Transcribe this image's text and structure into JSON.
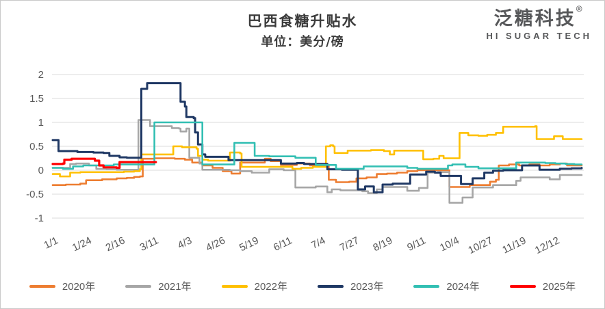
{
  "header": {
    "title": "巴西食糖升贴水",
    "subtitle": "单位：美分/磅"
  },
  "logo": {
    "name": "泛糖科技",
    "registered": "®",
    "tagline": "HI SUGAR TECH"
  },
  "colors": {
    "background": "#ffffff",
    "border": "#c9c9c9",
    "grid": "#dbdbdb",
    "axis_text": "#595959",
    "title_text": "#3b3b3b",
    "logo_text": "#57585a"
  },
  "chart_data": {
    "type": "line",
    "title": "巴西食糖升贴水",
    "subtitle": "单位：美分/磅",
    "ylabel": "",
    "xlabel": "",
    "ylim": [
      -1,
      2
    ],
    "grid": "horizontal",
    "legend_position": "bottom",
    "step_interpolation": true,
    "x_unit": "day-of-year",
    "ytick_values": [
      2,
      1.5,
      1,
      0.5,
      0,
      -0.5,
      -1
    ],
    "ytick_labels": [
      "2",
      "1.5",
      "1",
      "0.5",
      "0",
      "-0.5",
      "-1"
    ],
    "xticks": [
      {
        "label": "1/1",
        "day": 1
      },
      {
        "label": "1/24",
        "day": 24
      },
      {
        "label": "2/16",
        "day": 47
      },
      {
        "label": "3/11",
        "day": 70
      },
      {
        "label": "4/3",
        "day": 93
      },
      {
        "label": "4/26",
        "day": 116
      },
      {
        "label": "5/19",
        "day": 139
      },
      {
        "label": "6/11",
        "day": 162
      },
      {
        "label": "7/4",
        "day": 185
      },
      {
        "label": "7/27",
        "day": 208
      },
      {
        "label": "8/19",
        "day": 231
      },
      {
        "label": "9/11",
        "day": 254
      },
      {
        "label": "10/4",
        "day": 277
      },
      {
        "label": "10/27",
        "day": 300
      },
      {
        "label": "11/19",
        "day": 323
      },
      {
        "label": "12/12",
        "day": 346
      }
    ],
    "series": [
      {
        "name": "2020年",
        "color": "#ED7D31",
        "width": 2.6,
        "points": [
          [
            1,
            -0.31
          ],
          [
            10,
            -0.3
          ],
          [
            20,
            -0.28
          ],
          [
            24,
            -0.21
          ],
          [
            35,
            -0.19
          ],
          [
            45,
            -0.17
          ],
          [
            52,
            -0.16
          ],
          [
            57,
            -0.14
          ],
          [
            61,
            -0.13
          ],
          [
            63,
            0.24
          ],
          [
            71,
            0.25
          ],
          [
            85,
            0.24
          ],
          [
            92,
            0.22
          ],
          [
            97,
            0.16
          ],
          [
            104,
            0.1
          ],
          [
            111,
            0.05
          ],
          [
            118,
            -0.02
          ],
          [
            124,
            -0.07
          ],
          [
            130,
            0.16
          ],
          [
            142,
            0.16
          ],
          [
            147,
            0.24
          ],
          [
            151,
            0.19
          ],
          [
            158,
            0.11
          ],
          [
            169,
            0.14
          ],
          [
            178,
            0.1
          ],
          [
            189,
            0.1
          ],
          [
            191,
            -0.2
          ],
          [
            196,
            -0.25
          ],
          [
            205,
            -0.24
          ],
          [
            210,
            -0.17
          ],
          [
            217,
            -0.15
          ],
          [
            224,
            -0.08
          ],
          [
            231,
            -0.07
          ],
          [
            238,
            -0.05
          ],
          [
            245,
            -0.02
          ],
          [
            252,
            0.0
          ],
          [
            266,
            0.0
          ],
          [
            274,
            -0.35
          ],
          [
            283,
            -0.35
          ],
          [
            288,
            -0.31
          ],
          [
            297,
            -0.31
          ],
          [
            302,
            -0.24
          ],
          [
            306,
            -0.2
          ],
          [
            308,
            0.1
          ],
          [
            315,
            0.12
          ],
          [
            322,
            0.1
          ],
          [
            329,
            0.12
          ],
          [
            336,
            0.1
          ],
          [
            343,
            0.12
          ],
          [
            350,
            0.14
          ],
          [
            355,
            0.1
          ],
          [
            365,
            0.1
          ]
        ]
      },
      {
        "name": "2021年",
        "color": "#A6A6A6",
        "width": 2.6,
        "points": [
          [
            1,
            0.05
          ],
          [
            12,
            0.05
          ],
          [
            13,
            0.13
          ],
          [
            17,
            0.14
          ],
          [
            26,
            0.1
          ],
          [
            31,
            0.03
          ],
          [
            38,
            0.02
          ],
          [
            45,
            0.01
          ],
          [
            59,
            0.01
          ],
          [
            60,
            1.05
          ],
          [
            67,
            1.05
          ],
          [
            68,
            0.92
          ],
          [
            82,
            0.92
          ],
          [
            83,
            0.88
          ],
          [
            88,
            0.87
          ],
          [
            89,
            0.81
          ],
          [
            92,
            0.81
          ],
          [
            93,
            0.87
          ],
          [
            95,
            0.26
          ],
          [
            102,
            0.14
          ],
          [
            104,
            0.01
          ],
          [
            110,
            0.01
          ],
          [
            123,
            0.0
          ],
          [
            130,
            -0.02
          ],
          [
            138,
            -0.05
          ],
          [
            150,
            0.02
          ],
          [
            160,
            0.0
          ],
          [
            167,
            0.0
          ],
          [
            168,
            -0.36
          ],
          [
            180,
            -0.36
          ],
          [
            182,
            -0.34
          ],
          [
            189,
            -0.34
          ],
          [
            190,
            -0.46
          ],
          [
            193,
            -0.4
          ],
          [
            199,
            -0.42
          ],
          [
            211,
            -0.42
          ],
          [
            214,
            -0.44
          ],
          [
            218,
            -0.48
          ],
          [
            224,
            -0.4
          ],
          [
            228,
            -0.35
          ],
          [
            244,
            -0.35
          ],
          [
            245,
            -0.43
          ],
          [
            251,
            -0.43
          ],
          [
            253,
            -0.37
          ],
          [
            258,
            -0.37
          ],
          [
            259,
            -0.05
          ],
          [
            266,
            -0.04
          ],
          [
            273,
            -0.04
          ],
          [
            274,
            -0.68
          ],
          [
            281,
            -0.68
          ],
          [
            283,
            -0.57
          ],
          [
            289,
            -0.57
          ],
          [
            290,
            -0.36
          ],
          [
            301,
            -0.36
          ],
          [
            304,
            -0.31
          ],
          [
            317,
            -0.31
          ],
          [
            320,
            -0.22
          ],
          [
            323,
            -0.15
          ],
          [
            341,
            -0.15
          ],
          [
            343,
            -0.19
          ],
          [
            348,
            -0.19
          ],
          [
            350,
            -0.1
          ],
          [
            365,
            -0.1
          ]
        ]
      },
      {
        "name": "2022年",
        "color": "#FFC000",
        "width": 2.6,
        "points": [
          [
            1,
            -0.08
          ],
          [
            6,
            -0.13
          ],
          [
            13,
            -0.05
          ],
          [
            20,
            -0.04
          ],
          [
            50,
            -0.03
          ],
          [
            57,
            -0.02
          ],
          [
            61,
            0.02
          ],
          [
            62,
            0.33
          ],
          [
            83,
            0.33
          ],
          [
            84,
            0.5
          ],
          [
            90,
            0.48
          ],
          [
            100,
            0.45
          ],
          [
            101,
            0.3
          ],
          [
            104,
            0.22
          ],
          [
            108,
            0.2
          ],
          [
            118,
            0.2
          ],
          [
            123,
            0.37
          ],
          [
            130,
            0.35
          ],
          [
            131,
            0.07
          ],
          [
            160,
            0.07
          ],
          [
            166,
            0.03
          ],
          [
            172,
            0.05
          ],
          [
            180,
            0.07
          ],
          [
            188,
            0.07
          ],
          [
            189,
            0.5
          ],
          [
            192,
            0.52
          ],
          [
            194,
            0.5
          ],
          [
            195,
            0.36
          ],
          [
            202,
            0.36
          ],
          [
            204,
            0.41
          ],
          [
            216,
            0.41
          ],
          [
            220,
            0.42
          ],
          [
            229,
            0.4
          ],
          [
            233,
            0.33
          ],
          [
            236,
            0.41
          ],
          [
            254,
            0.41
          ],
          [
            256,
            0.23
          ],
          [
            263,
            0.24
          ],
          [
            267,
            0.3
          ],
          [
            270,
            0.25
          ],
          [
            279,
            0.25
          ],
          [
            281,
            0.78
          ],
          [
            287,
            0.73
          ],
          [
            294,
            0.72
          ],
          [
            300,
            0.74
          ],
          [
            306,
            0.78
          ],
          [
            311,
            0.91
          ],
          [
            333,
            0.92
          ],
          [
            334,
            0.65
          ],
          [
            345,
            0.65
          ],
          [
            346,
            0.71
          ],
          [
            351,
            0.71
          ],
          [
            352,
            0.65
          ],
          [
            365,
            0.65
          ]
        ]
      },
      {
        "name": "2023年",
        "color": "#1F3864",
        "width": 3,
        "points": [
          [
            1,
            0.63
          ],
          [
            5,
            0.4
          ],
          [
            15,
            0.4
          ],
          [
            18,
            0.38
          ],
          [
            29,
            0.37
          ],
          [
            36,
            0.36
          ],
          [
            40,
            0.3
          ],
          [
            47,
            0.27
          ],
          [
            52,
            0.26
          ],
          [
            61,
            0.26
          ],
          [
            62,
            1.7
          ],
          [
            66,
            1.82
          ],
          [
            88,
            1.82
          ],
          [
            89,
            1.43
          ],
          [
            92,
            1.33
          ],
          [
            93,
            1.11
          ],
          [
            98,
            1.09
          ],
          [
            99,
            0.79
          ],
          [
            101,
            0.54
          ],
          [
            104,
            0.33
          ],
          [
            106,
            0.28
          ],
          [
            122,
            0.21
          ],
          [
            157,
            0.21
          ],
          [
            158,
            0.14
          ],
          [
            169,
            0.15
          ],
          [
            174,
            0.13
          ],
          [
            182,
            0.13
          ],
          [
            190,
            0.02
          ],
          [
            200,
            0.01
          ],
          [
            211,
            -0.4
          ],
          [
            216,
            -0.34
          ],
          [
            222,
            -0.46
          ],
          [
            228,
            -0.3
          ],
          [
            235,
            -0.28
          ],
          [
            247,
            -0.09
          ],
          [
            258,
            -0.03
          ],
          [
            264,
            -0.05
          ],
          [
            268,
            -0.12
          ],
          [
            281,
            -0.12
          ],
          [
            282,
            -0.29
          ],
          [
            289,
            -0.29
          ],
          [
            290,
            -0.17
          ],
          [
            297,
            -0.17
          ],
          [
            298,
            -0.05
          ],
          [
            304,
            -0.01
          ],
          [
            311,
            0.0
          ],
          [
            324,
            0.1
          ],
          [
            335,
            0.1
          ],
          [
            336,
            0.01
          ],
          [
            350,
            0.03
          ],
          [
            358,
            0.04
          ],
          [
            365,
            0.05
          ]
        ]
      },
      {
        "name": "2024年",
        "color": "#32BFB3",
        "width": 2.6,
        "points": [
          [
            1,
            0.05
          ],
          [
            8,
            0.03
          ],
          [
            15,
            0.08
          ],
          [
            22,
            0.1
          ],
          [
            36,
            0.1
          ],
          [
            43,
            0.12
          ],
          [
            70,
            0.12
          ],
          [
            71,
            1.0
          ],
          [
            103,
            1.0
          ],
          [
            104,
            0.12
          ],
          [
            125,
            0.12
          ],
          [
            126,
            0.57
          ],
          [
            139,
            0.57
          ],
          [
            140,
            0.3
          ],
          [
            150,
            0.29
          ],
          [
            162,
            0.29
          ],
          [
            168,
            0.26
          ],
          [
            181,
            0.26
          ],
          [
            182,
            0.11
          ],
          [
            195,
            0.11
          ],
          [
            196,
            0.03
          ],
          [
            214,
            0.03
          ],
          [
            215,
            0.08
          ],
          [
            230,
            0.08
          ],
          [
            245,
            0.05
          ],
          [
            252,
            0.03
          ],
          [
            272,
            0.03
          ],
          [
            273,
            0.1
          ],
          [
            276,
            0.12
          ],
          [
            284,
            0.12
          ],
          [
            285,
            0.07
          ],
          [
            293,
            0.07
          ],
          [
            294,
            0.04
          ],
          [
            319,
            0.04
          ],
          [
            320,
            0.16
          ],
          [
            334,
            0.16
          ],
          [
            340,
            0.15
          ],
          [
            347,
            0.14
          ],
          [
            354,
            0.13
          ],
          [
            360,
            0.12
          ],
          [
            365,
            0.12
          ]
        ]
      },
      {
        "name": "2025年",
        "color": "#FF0000",
        "width": 3.2,
        "points": [
          [
            1,
            0.13
          ],
          [
            8,
            0.14
          ],
          [
            9,
            0.22
          ],
          [
            14,
            0.24
          ],
          [
            28,
            0.24
          ],
          [
            30,
            0.2
          ],
          [
            33,
            0.1
          ],
          [
            36,
            0.06
          ],
          [
            45,
            0.05
          ],
          [
            47,
            0.17
          ],
          [
            72,
            0.17
          ]
        ]
      }
    ]
  }
}
